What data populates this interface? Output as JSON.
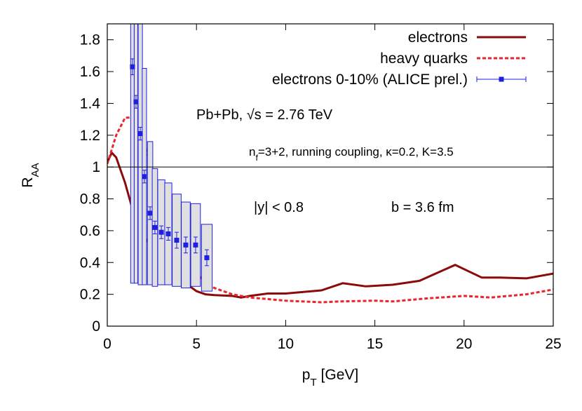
{
  "chart_data": {
    "type": "line",
    "xlabel": [
      "p",
      "T",
      " [GeV]"
    ],
    "ylabel": [
      "R",
      "AA"
    ],
    "xlim": [
      0,
      25
    ],
    "ylim": [
      0,
      1.9
    ],
    "xticks": [
      0,
      5,
      10,
      15,
      20,
      25
    ],
    "yticks": [
      0,
      0.2,
      0.4,
      0.6,
      0.8,
      1,
      1.2,
      1.4,
      1.6,
      1.8
    ],
    "reference_line": 1,
    "legend": "top-right",
    "annotations": [
      [
        "Pb+Pb, √s = 2.76 TeV"
      ],
      [
        "n",
        "f",
        "=3+2, running coupling, κ=0.2, K=3.5"
      ],
      [
        "|y| < 0.8"
      ],
      [
        "b = 3.6 fm"
      ]
    ],
    "series": [
      {
        "name": "electrons",
        "color": "#8b0a0a",
        "style": "solid",
        "x": [
          0,
          0.25,
          0.5,
          1,
          1.5,
          2,
          2.5,
          3,
          3.5,
          4,
          4.5,
          5,
          5.5,
          6,
          7,
          7.5,
          8,
          9,
          10,
          11,
          12,
          13.2,
          14.5,
          16,
          17.5,
          19.5,
          21,
          22,
          23.5,
          25
        ],
        "values": [
          1.03,
          1.09,
          1.06,
          0.9,
          0.7,
          0.57,
          0.5,
          0.44,
          0.38,
          0.31,
          0.26,
          0.22,
          0.2,
          0.195,
          0.19,
          0.18,
          0.19,
          0.205,
          0.205,
          0.215,
          0.225,
          0.27,
          0.25,
          0.26,
          0.285,
          0.385,
          0.305,
          0.305,
          0.3,
          0.33
        ]
      },
      {
        "name": "heavy quarks",
        "color": "#e8262b",
        "style": "dashed",
        "x": [
          0,
          0.5,
          1,
          1.3,
          1.5,
          2,
          2.5,
          3,
          3.5,
          4,
          4.5,
          5,
          5.5,
          6,
          7,
          8,
          10,
          12,
          13,
          15,
          16,
          18,
          20,
          21.5,
          23.5,
          25
        ],
        "values": [
          1.02,
          1.2,
          1.31,
          1.31,
          1.28,
          1.17,
          1.0,
          0.8,
          0.65,
          0.52,
          0.42,
          0.33,
          0.28,
          0.24,
          0.2,
          0.18,
          0.16,
          0.15,
          0.155,
          0.16,
          0.155,
          0.175,
          0.19,
          0.18,
          0.2,
          0.23
        ]
      },
      {
        "name": "electrons 0-10% (ALICE prel.)",
        "color": "#1f1fe0",
        "style": "points",
        "x": [
          1.41,
          1.61,
          1.85,
          2.08,
          2.4,
          2.67,
          3.03,
          3.42,
          3.89,
          4.4,
          4.95,
          5.58
        ],
        "values": [
          1.63,
          1.41,
          1.21,
          0.94,
          0.71,
          0.62,
          0.59,
          0.58,
          0.54,
          0.51,
          0.51,
          0.43
        ],
        "yerr": [
          0.05,
          0.04,
          0.04,
          0.04,
          0.04,
          0.04,
          0.04,
          0.04,
          0.05,
          0.05,
          0.05,
          0.05
        ],
        "sys": [
          1.36,
          1.14,
          0.95,
          0.68,
          0.45,
          0.37,
          0.33,
          0.32,
          0.29,
          0.27,
          0.26,
          0.21
        ],
        "xerr": [
          0.1,
          0.1,
          0.12,
          0.12,
          0.15,
          0.15,
          0.2,
          0.2,
          0.25,
          0.25,
          0.27,
          0.3
        ]
      }
    ]
  }
}
